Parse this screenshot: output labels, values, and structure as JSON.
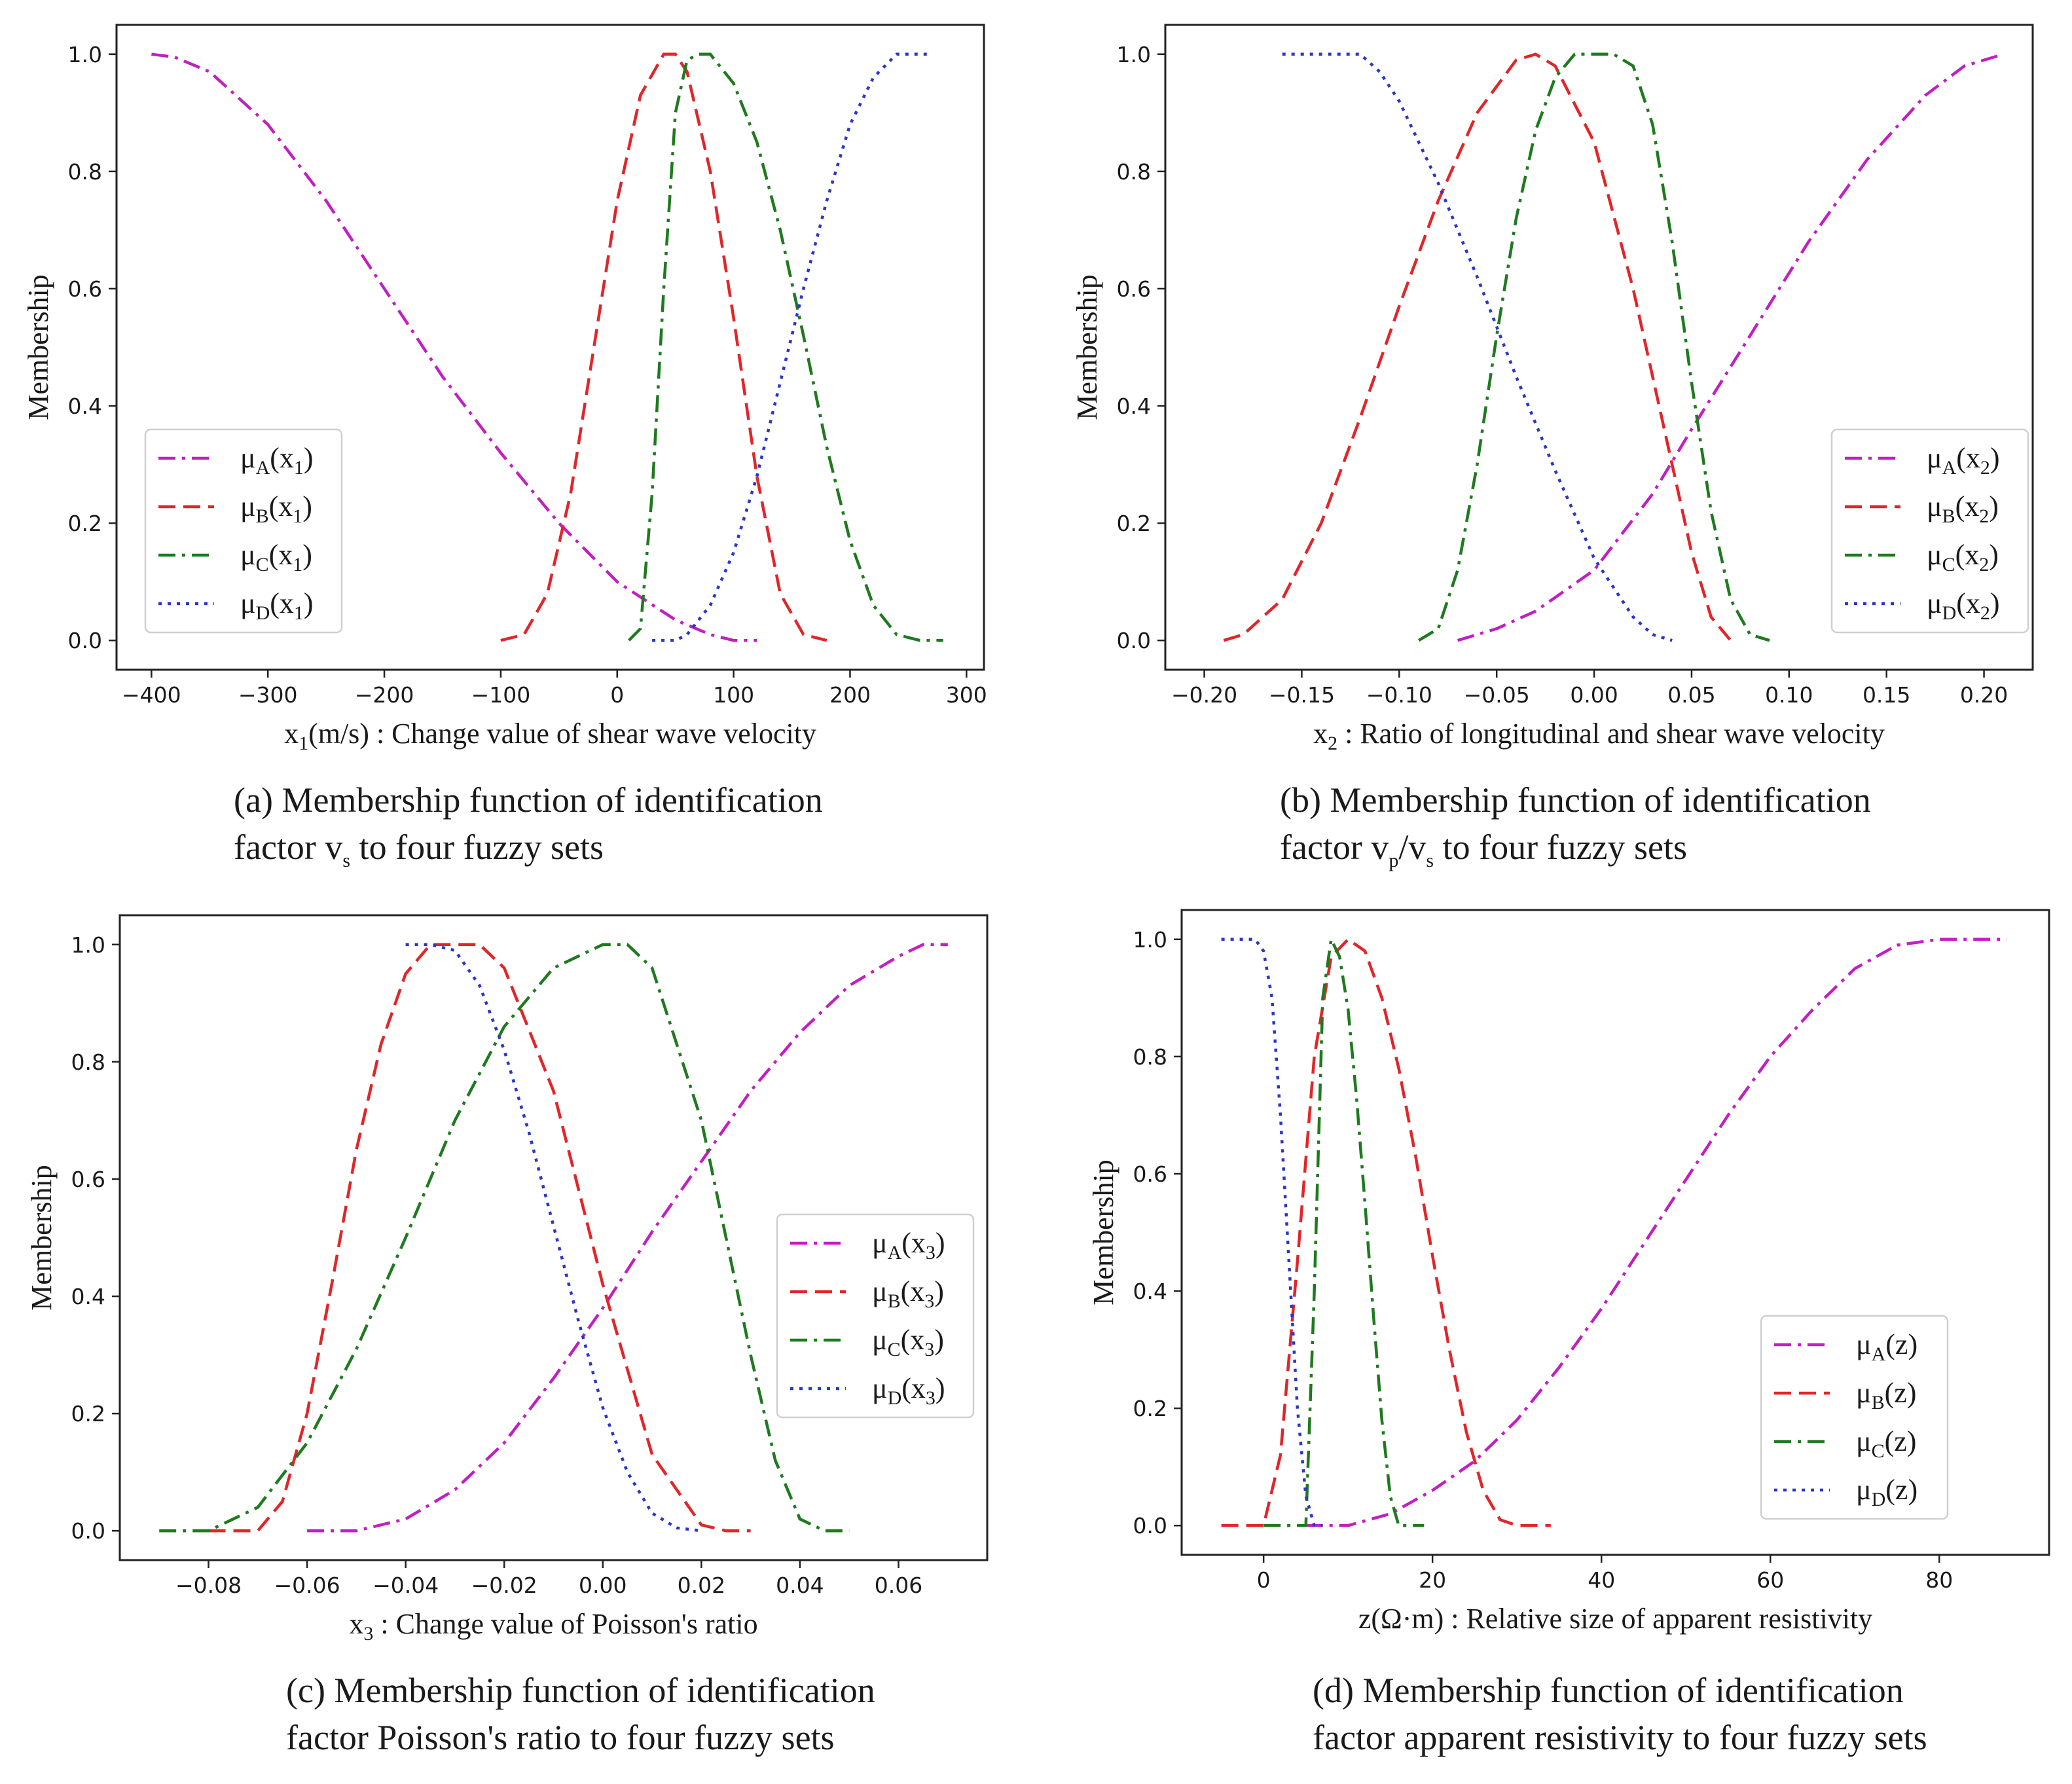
{
  "chart_data": [
    {
      "id": "a",
      "type": "line",
      "xlabel": "x₁(m/s) : Change value of shear wave velocity",
      "ylabel": "Membership",
      "xlim": [
        -430,
        315
      ],
      "ylim": [
        -0.05,
        1.05
      ],
      "xticks": [
        -400,
        -300,
        -200,
        -100,
        0,
        100,
        200,
        300
      ],
      "xtick_labels": [
        "−400",
        "−300",
        "−200",
        "−100",
        "0",
        "100",
        "200",
        "300"
      ],
      "yticks": [
        0.0,
        0.2,
        0.4,
        0.6,
        0.8,
        1.0
      ],
      "ytick_labels": [
        "0.0",
        "0.2",
        "0.4",
        "0.6",
        "0.8",
        "1.0"
      ],
      "legend_position": "center-left",
      "series": [
        {
          "name": "μA(x₁)",
          "sym": "μ",
          "sub": "A",
          "arg": "x",
          "argsub": "1",
          "color": "#c21fc2",
          "style": "dashdot",
          "x": [
            -400,
            -380,
            -350,
            -300,
            -250,
            -200,
            -150,
            -100,
            -50,
            0,
            50,
            80,
            100,
            120
          ],
          "y": [
            1.0,
            0.995,
            0.97,
            0.88,
            0.75,
            0.6,
            0.45,
            0.32,
            0.2,
            0.1,
            0.035,
            0.01,
            0.0,
            0.0
          ]
        },
        {
          "name": "μB(x₁)",
          "sym": "μ",
          "sub": "B",
          "arg": "x",
          "argsub": "1",
          "color": "#e0262a",
          "style": "dashed",
          "x": [
            -100,
            -80,
            -60,
            -40,
            -20,
            0,
            20,
            40,
            50,
            60,
            80,
            100,
            120,
            140,
            160,
            180
          ],
          "y": [
            0.0,
            0.01,
            0.08,
            0.25,
            0.5,
            0.75,
            0.93,
            1.0,
            1.0,
            0.97,
            0.8,
            0.55,
            0.28,
            0.08,
            0.01,
            0.0
          ]
        },
        {
          "name": "μC(x₁)",
          "sym": "μ",
          "sub": "C",
          "arg": "x",
          "argsub": "1",
          "color": "#1f7a1f",
          "style": "dashdot",
          "x": [
            10,
            20,
            30,
            40,
            50,
            60,
            70,
            80,
            100,
            120,
            140,
            160,
            180,
            200,
            220,
            240,
            260,
            280
          ],
          "y": [
            0.0,
            0.02,
            0.25,
            0.6,
            0.9,
            0.99,
            1.0,
            1.0,
            0.95,
            0.85,
            0.7,
            0.52,
            0.33,
            0.17,
            0.06,
            0.01,
            0.0,
            0.0
          ]
        },
        {
          "name": "μD(x₁)",
          "sym": "μ",
          "sub": "D",
          "arg": "x",
          "argsub": "1",
          "color": "#2a35c9",
          "style": "dotted",
          "x": [
            30,
            50,
            60,
            80,
            100,
            120,
            140,
            160,
            180,
            200,
            220,
            240,
            255,
            270
          ],
          "y": [
            0.0,
            0.0,
            0.01,
            0.06,
            0.15,
            0.28,
            0.44,
            0.6,
            0.75,
            0.88,
            0.96,
            1.0,
            1.0,
            1.0
          ]
        }
      ]
    },
    {
      "id": "b",
      "type": "line",
      "xlabel": "x₂ : Ratio of longitudinal and shear wave velocity",
      "ylabel": "Membership",
      "xlim": [
        -0.22,
        0.225
      ],
      "ylim": [
        -0.05,
        1.05
      ],
      "xticks": [
        -0.2,
        -0.15,
        -0.1,
        -0.05,
        0.0,
        0.05,
        0.1,
        0.15,
        0.2
      ],
      "xtick_labels": [
        "−0.20",
        "−0.15",
        "−0.10",
        "−0.05",
        "0.00",
        "0.05",
        "0.10",
        "0.15",
        "0.20"
      ],
      "yticks": [
        0.0,
        0.2,
        0.4,
        0.6,
        0.8,
        1.0
      ],
      "ytick_labels": [
        "0.0",
        "0.2",
        "0.4",
        "0.6",
        "0.8",
        "1.0"
      ],
      "legend_position": "center-right",
      "series": [
        {
          "name": "μA(x₂)",
          "sym": "μ",
          "sub": "A",
          "arg": "x",
          "argsub": "2",
          "color": "#c21fc2",
          "style": "dashdot",
          "x": [
            -0.07,
            -0.05,
            -0.03,
            0.0,
            0.03,
            0.05,
            0.08,
            0.11,
            0.14,
            0.17,
            0.19,
            0.21
          ],
          "y": [
            0.0,
            0.02,
            0.05,
            0.12,
            0.25,
            0.36,
            0.52,
            0.68,
            0.82,
            0.93,
            0.98,
            1.0
          ]
        },
        {
          "name": "μB(x₂)",
          "sym": "μ",
          "sub": "B",
          "arg": "x",
          "argsub": "2",
          "color": "#e0262a",
          "style": "dashed",
          "x": [
            -0.19,
            -0.18,
            -0.16,
            -0.14,
            -0.12,
            -0.1,
            -0.08,
            -0.06,
            -0.04,
            -0.03,
            -0.02,
            0.0,
            0.02,
            0.04,
            0.05,
            0.06,
            0.07
          ],
          "y": [
            0.0,
            0.01,
            0.07,
            0.2,
            0.38,
            0.57,
            0.75,
            0.9,
            0.99,
            1.0,
            0.98,
            0.85,
            0.6,
            0.3,
            0.15,
            0.04,
            0.0
          ]
        },
        {
          "name": "μC(x₂)",
          "sym": "μ",
          "sub": "C",
          "arg": "x",
          "argsub": "2",
          "color": "#1f7a1f",
          "style": "dashdot",
          "x": [
            -0.09,
            -0.08,
            -0.07,
            -0.06,
            -0.05,
            -0.04,
            -0.03,
            -0.02,
            -0.01,
            0.0,
            0.01,
            0.02,
            0.03,
            0.04,
            0.05,
            0.06,
            0.07,
            0.08,
            0.09
          ],
          "y": [
            0.0,
            0.02,
            0.12,
            0.3,
            0.52,
            0.72,
            0.87,
            0.96,
            1.0,
            1.0,
            1.0,
            0.98,
            0.88,
            0.68,
            0.44,
            0.22,
            0.07,
            0.01,
            0.0
          ]
        },
        {
          "name": "μD(x₂)",
          "sym": "μ",
          "sub": "D",
          "arg": "x",
          "argsub": "2",
          "color": "#2a35c9",
          "style": "dotted",
          "x": [
            -0.16,
            -0.14,
            -0.12,
            -0.11,
            -0.1,
            -0.08,
            -0.06,
            -0.04,
            -0.02,
            0.0,
            0.02,
            0.03,
            0.04
          ],
          "y": [
            1.0,
            1.0,
            1.0,
            0.97,
            0.92,
            0.78,
            0.62,
            0.45,
            0.29,
            0.14,
            0.04,
            0.01,
            0.0
          ]
        }
      ]
    },
    {
      "id": "c",
      "type": "line",
      "xlabel": "x₃ : Change value of Poisson's ratio",
      "ylabel": "Membership",
      "xlim": [
        -0.098,
        0.078
      ],
      "ylim": [
        -0.05,
        1.05
      ],
      "xticks": [
        -0.08,
        -0.06,
        -0.04,
        -0.02,
        0.0,
        0.02,
        0.04,
        0.06
      ],
      "xtick_labels": [
        "−0.08",
        "−0.06",
        "−0.04",
        "−0.02",
        "0.00",
        "0.02",
        "0.04",
        "0.06"
      ],
      "yticks": [
        0.0,
        0.2,
        0.4,
        0.6,
        0.8,
        1.0
      ],
      "ytick_labels": [
        "0.0",
        "0.2",
        "0.4",
        "0.6",
        "0.8",
        "1.0"
      ],
      "legend_position": "center-right",
      "series": [
        {
          "name": "μA(x₃)",
          "sym": "μ",
          "sub": "A",
          "arg": "x",
          "argsub": "3",
          "color": "#c21fc2",
          "style": "dashdot",
          "x": [
            -0.06,
            -0.05,
            -0.04,
            -0.03,
            -0.02,
            -0.01,
            0.0,
            0.01,
            0.02,
            0.03,
            0.04,
            0.05,
            0.06,
            0.065,
            0.07
          ],
          "y": [
            0.0,
            0.0,
            0.02,
            0.07,
            0.15,
            0.26,
            0.38,
            0.51,
            0.63,
            0.75,
            0.85,
            0.93,
            0.98,
            1.0,
            1.0
          ]
        },
        {
          "name": "μB(x₃)",
          "sym": "μ",
          "sub": "B",
          "arg": "x",
          "argsub": "3",
          "color": "#e0262a",
          "style": "dashed",
          "x": [
            -0.08,
            -0.07,
            -0.065,
            -0.06,
            -0.055,
            -0.05,
            -0.045,
            -0.04,
            -0.035,
            -0.03,
            -0.025,
            -0.02,
            -0.01,
            0.0,
            0.01,
            0.02,
            0.025,
            0.03
          ],
          "y": [
            0.0,
            0.0,
            0.05,
            0.2,
            0.42,
            0.65,
            0.83,
            0.95,
            1.0,
            1.0,
            1.0,
            0.96,
            0.75,
            0.42,
            0.13,
            0.01,
            0.0,
            0.0
          ]
        },
        {
          "name": "μC(x₃)",
          "sym": "μ",
          "sub": "C",
          "arg": "x",
          "argsub": "3",
          "color": "#1f7a1f",
          "style": "dashdot",
          "x": [
            -0.09,
            -0.08,
            -0.07,
            -0.06,
            -0.05,
            -0.04,
            -0.03,
            -0.02,
            -0.01,
            0.0,
            0.005,
            0.01,
            0.02,
            0.03,
            0.035,
            0.04,
            0.045,
            0.05
          ],
          "y": [
            0.0,
            0.0,
            0.04,
            0.15,
            0.31,
            0.5,
            0.7,
            0.86,
            0.96,
            1.0,
            1.0,
            0.96,
            0.7,
            0.3,
            0.12,
            0.02,
            0.0,
            0.0
          ]
        },
        {
          "name": "μD(x₃)",
          "sym": "μ",
          "sub": "D",
          "arg": "x",
          "argsub": "3",
          "color": "#2a35c9",
          "style": "dotted",
          "x": [
            -0.04,
            -0.035,
            -0.03,
            -0.025,
            -0.02,
            -0.015,
            -0.01,
            -0.005,
            0.0,
            0.005,
            0.01,
            0.015,
            0.02
          ],
          "y": [
            1.0,
            1.0,
            0.99,
            0.93,
            0.82,
            0.68,
            0.52,
            0.36,
            0.21,
            0.1,
            0.03,
            0.005,
            0.0
          ]
        }
      ]
    },
    {
      "id": "d",
      "type": "line",
      "xlabel": "z(Ω·m) : Relative size of apparent resistivity",
      "ylabel": "Membership",
      "xlim": [
        -9.7,
        93
      ],
      "ylim": [
        -0.05,
        1.05
      ],
      "xticks": [
        0,
        20,
        40,
        60,
        80
      ],
      "xtick_labels": [
        "0",
        "20",
        "40",
        "60",
        "80"
      ],
      "yticks": [
        0.0,
        0.2,
        0.4,
        0.6,
        0.8,
        1.0
      ],
      "ytick_labels": [
        "0.0",
        "0.2",
        "0.4",
        "0.6",
        "0.8",
        "1.0"
      ],
      "legend_position": "lower-right",
      "series": [
        {
          "name": "μA(z)",
          "sym": "μ",
          "sub": "A",
          "arg": "z",
          "argsub": "",
          "color": "#c21fc2",
          "style": "dashdot",
          "x": [
            5,
            10,
            15,
            20,
            25,
            30,
            35,
            40,
            45,
            50,
            55,
            60,
            65,
            70,
            75,
            80,
            85,
            88
          ],
          "y": [
            0.0,
            0.0,
            0.02,
            0.06,
            0.11,
            0.18,
            0.27,
            0.37,
            0.48,
            0.59,
            0.7,
            0.8,
            0.88,
            0.95,
            0.99,
            1.0,
            1.0,
            1.0
          ]
        },
        {
          "name": "μB(z)",
          "sym": "μ",
          "sub": "B",
          "arg": "z",
          "argsub": "",
          "color": "#e0262a",
          "style": "dashed",
          "x": [
            -5,
            0,
            2,
            4,
            6,
            8,
            10,
            12,
            14,
            16,
            18,
            20,
            22,
            24,
            26,
            28,
            30,
            34
          ],
          "y": [
            0.0,
            0.0,
            0.12,
            0.45,
            0.8,
            0.97,
            1.0,
            0.98,
            0.9,
            0.78,
            0.63,
            0.46,
            0.3,
            0.16,
            0.06,
            0.01,
            0.0,
            0.0
          ]
        },
        {
          "name": "μC(z)",
          "sym": "μ",
          "sub": "C",
          "arg": "z",
          "argsub": "",
          "color": "#1f7a1f",
          "style": "dashdot",
          "x": [
            0,
            5,
            6,
            7,
            8,
            9,
            10,
            11,
            12,
            13,
            14,
            15,
            16,
            19
          ],
          "y": [
            0.0,
            0.0,
            0.4,
            0.9,
            1.0,
            0.97,
            0.88,
            0.73,
            0.55,
            0.36,
            0.18,
            0.05,
            0.0,
            0.0
          ]
        },
        {
          "name": "μD(z)",
          "sym": "μ",
          "sub": "D",
          "arg": "z",
          "argsub": "",
          "color": "#2a35c9",
          "style": "dotted",
          "x": [
            -5,
            -1,
            0,
            1,
            2,
            3,
            4,
            5,
            6,
            7
          ],
          "y": [
            1.0,
            1.0,
            0.98,
            0.9,
            0.7,
            0.45,
            0.2,
            0.05,
            0.0,
            0.0
          ]
        }
      ]
    }
  ],
  "captions": [
    {
      "line1": "(a) Membership function of identification",
      "line2_pre": "factor v",
      "line2_sub": "s",
      "line2_post": " to four fuzzy sets"
    },
    {
      "line1": "(b) Membership function of identification",
      "line2_pre": "factor v",
      "line2_sub": "p",
      "line2_mid": "/v",
      "line2_sub2": "s",
      "line2_post": " to four fuzzy sets"
    },
    {
      "line1": "(c) Membership function of identification",
      "line2_pre": "factor Poisson's ratio to four fuzzy sets"
    },
    {
      "line1": "(d) Membership function of identification",
      "line2_pre": "factor apparent resistivity to four fuzzy sets"
    }
  ],
  "xlabel_rich": [
    {
      "pre": "x",
      "sub": "1",
      "post": "(m/s) : Change value of shear wave velocity"
    },
    {
      "pre": "x",
      "sub": "2",
      "post": " : Ratio of longitudinal and shear wave velocity"
    },
    {
      "pre": "x",
      "sub": "3",
      "post": " : Change value of Poisson's ratio"
    },
    {
      "pre": "z(Ω·m) : Relative size of apparent resistivity",
      "sub": "",
      "post": ""
    }
  ]
}
